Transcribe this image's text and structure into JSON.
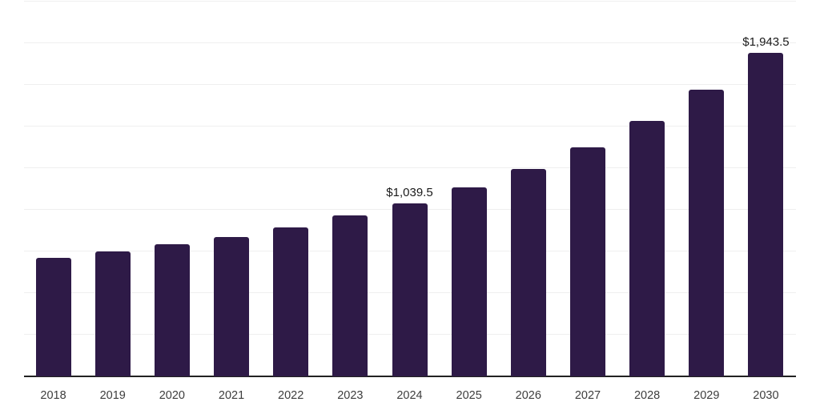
{
  "chart_data": {
    "type": "bar",
    "categories": [
      "2018",
      "2019",
      "2020",
      "2021",
      "2022",
      "2023",
      "2024",
      "2025",
      "2026",
      "2027",
      "2028",
      "2029",
      "2030"
    ],
    "values": [
      710,
      748,
      792,
      835,
      893,
      965,
      1039.5,
      1133,
      1245,
      1375,
      1535,
      1722,
      1943.5
    ],
    "series_name": "market-size",
    "title": "",
    "xlabel": "",
    "ylabel": "",
    "ylim": [
      0,
      2250
    ],
    "grid": true,
    "grid_step": 250,
    "y_tick_labels_visible": false,
    "legend_position": "none",
    "annotations": [
      {
        "category": "2024",
        "label": "$1,039.5"
      },
      {
        "category": "2030",
        "label": "$1,943.5"
      }
    ],
    "colors": {
      "bar": "#2e1a47",
      "gridline": "#efefef",
      "axis_line": "#222222",
      "value_label": "#1a1a1a",
      "tick_label": "#3d3d3d",
      "background": "#ffffff"
    }
  }
}
